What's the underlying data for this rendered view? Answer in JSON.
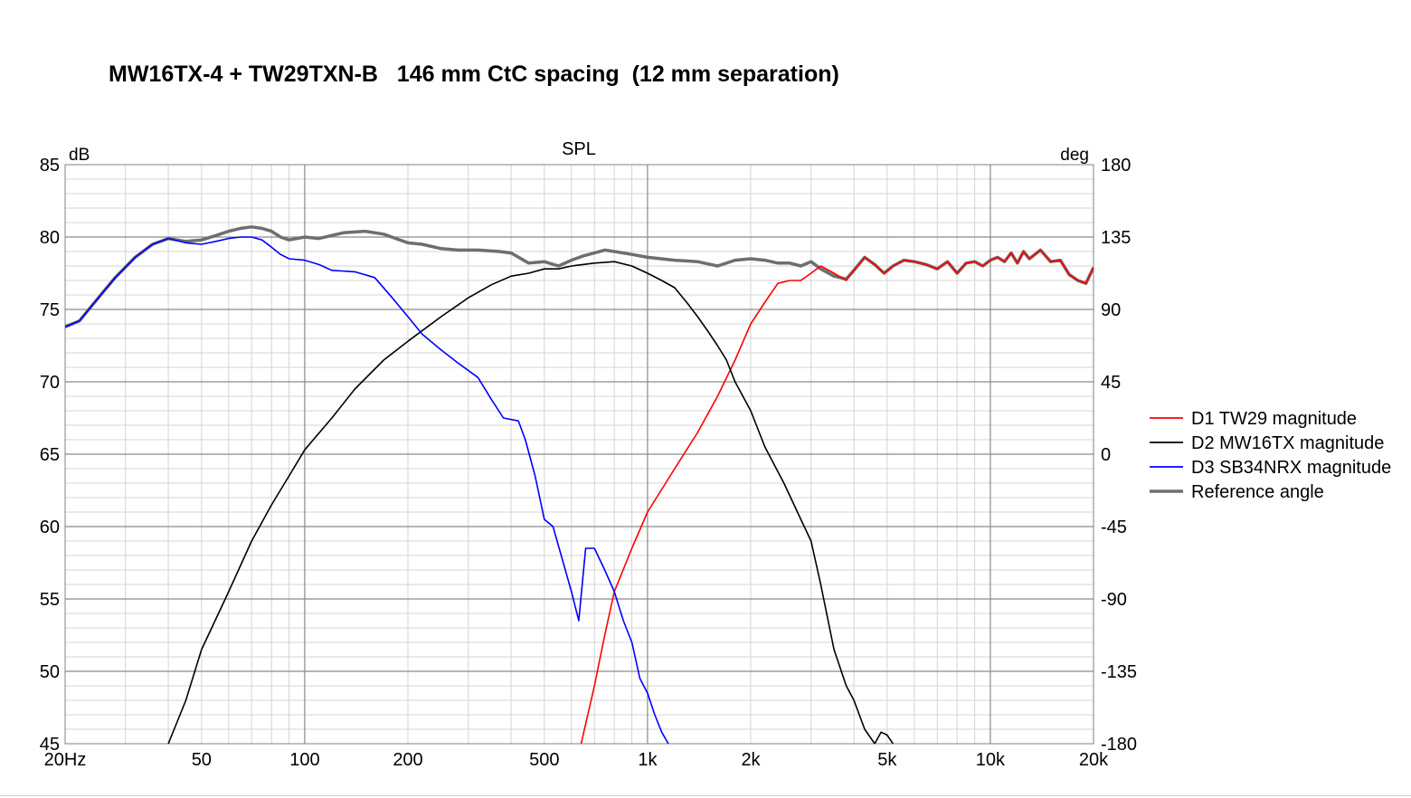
{
  "page": {
    "title": "MW16TX-4 + TW29TXN-B   146 mm CtC spacing  (12 mm separation)"
  },
  "chart_data": {
    "type": "line",
    "title": "SPL",
    "ylabel": "dB",
    "y2label": "deg",
    "xscale": "log",
    "xlim": [
      20,
      20000
    ],
    "ylim": [
      45,
      85
    ],
    "y2lim": [
      -180,
      180
    ],
    "x_ticks": [
      {
        "value": 20,
        "label": "20Hz"
      },
      {
        "value": 50,
        "label": "50"
      },
      {
        "value": 100,
        "label": "100"
      },
      {
        "value": 200,
        "label": "200"
      },
      {
        "value": 500,
        "label": "500"
      },
      {
        "value": 1000,
        "label": "1k"
      },
      {
        "value": 2000,
        "label": "2k"
      },
      {
        "value": 5000,
        "label": "5k"
      },
      {
        "value": 10000,
        "label": "10k"
      },
      {
        "value": 20000,
        "label": "20k"
      }
    ],
    "y_ticks": [
      45,
      50,
      55,
      60,
      65,
      70,
      75,
      80,
      85
    ],
    "y2_ticks": [
      -180,
      -135,
      -90,
      -45,
      0,
      45,
      90,
      135,
      180
    ],
    "grid": true,
    "legend_position": "right",
    "series": [
      {
        "name": "Reference angle",
        "color": "#6e6e6e",
        "points": [
          [
            20,
            73.8
          ],
          [
            22,
            74.2
          ],
          [
            25,
            75.8
          ],
          [
            28,
            77.2
          ],
          [
            32,
            78.6
          ],
          [
            36,
            79.5
          ],
          [
            40,
            79.9
          ],
          [
            45,
            79.7
          ],
          [
            50,
            79.8
          ],
          [
            55,
            80.1
          ],
          [
            60,
            80.4
          ],
          [
            65,
            80.6
          ],
          [
            70,
            80.7
          ],
          [
            75,
            80.6
          ],
          [
            80,
            80.4
          ],
          [
            85,
            80.0
          ],
          [
            90,
            79.8
          ],
          [
            100,
            80.0
          ],
          [
            110,
            79.9
          ],
          [
            130,
            80.3
          ],
          [
            150,
            80.4
          ],
          [
            170,
            80.2
          ],
          [
            200,
            79.6
          ],
          [
            220,
            79.5
          ],
          [
            250,
            79.2
          ],
          [
            280,
            79.1
          ],
          [
            320,
            79.1
          ],
          [
            370,
            79.0
          ],
          [
            400,
            78.9
          ],
          [
            450,
            78.2
          ],
          [
            500,
            78.3
          ],
          [
            550,
            78.0
          ],
          [
            600,
            78.4
          ],
          [
            650,
            78.7
          ],
          [
            700,
            78.9
          ],
          [
            750,
            79.1
          ],
          [
            800,
            79.0
          ],
          [
            900,
            78.8
          ],
          [
            1000,
            78.6
          ],
          [
            1200,
            78.4
          ],
          [
            1400,
            78.3
          ],
          [
            1600,
            78.0
          ],
          [
            1800,
            78.4
          ],
          [
            2000,
            78.5
          ],
          [
            2200,
            78.4
          ],
          [
            2400,
            78.2
          ],
          [
            2600,
            78.2
          ],
          [
            2800,
            78.0
          ],
          [
            3000,
            78.3
          ],
          [
            3200,
            77.8
          ],
          [
            3500,
            77.3
          ],
          [
            3800,
            77.1
          ],
          [
            4000,
            77.7
          ],
          [
            4300,
            78.6
          ],
          [
            4600,
            78.1
          ],
          [
            4900,
            77.5
          ],
          [
            5200,
            78.0
          ],
          [
            5600,
            78.4
          ],
          [
            6000,
            78.3
          ],
          [
            6500,
            78.1
          ],
          [
            7000,
            77.8
          ],
          [
            7500,
            78.3
          ],
          [
            8000,
            77.5
          ],
          [
            8500,
            78.2
          ],
          [
            9000,
            78.3
          ],
          [
            9500,
            78.0
          ],
          [
            10000,
            78.4
          ],
          [
            10500,
            78.6
          ],
          [
            11000,
            78.3
          ],
          [
            11500,
            78.9
          ],
          [
            12000,
            78.2
          ],
          [
            12500,
            79.0
          ],
          [
            13000,
            78.5
          ],
          [
            14000,
            79.1
          ],
          [
            15000,
            78.3
          ],
          [
            16000,
            78.4
          ],
          [
            17000,
            77.4
          ],
          [
            18000,
            77.0
          ],
          [
            19000,
            76.8
          ],
          [
            20000,
            77.9
          ]
        ]
      },
      {
        "name": "D1 TW29 magnitude",
        "color": "#ff0000",
        "points": [
          [
            640,
            45.0
          ],
          [
            700,
            49.0
          ],
          [
            750,
            52.5
          ],
          [
            800,
            55.5
          ],
          [
            900,
            58.5
          ],
          [
            1000,
            61.0
          ],
          [
            1200,
            64.0
          ],
          [
            1400,
            66.5
          ],
          [
            1600,
            69.0
          ],
          [
            1800,
            71.5
          ],
          [
            2000,
            74.0
          ],
          [
            2200,
            75.5
          ],
          [
            2400,
            76.8
          ],
          [
            2600,
            77.0
          ],
          [
            2800,
            77.0
          ],
          [
            3000,
            77.5
          ],
          [
            3200,
            78.0
          ],
          [
            3500,
            77.5
          ],
          [
            3800,
            77.0
          ],
          [
            4000,
            77.7
          ],
          [
            4300,
            78.6
          ],
          [
            4600,
            78.1
          ],
          [
            4900,
            77.5
          ],
          [
            5200,
            78.0
          ],
          [
            5600,
            78.4
          ],
          [
            6000,
            78.3
          ],
          [
            6500,
            78.1
          ],
          [
            7000,
            77.8
          ],
          [
            7500,
            78.3
          ],
          [
            8000,
            77.5
          ],
          [
            8500,
            78.2
          ],
          [
            9000,
            78.3
          ],
          [
            9500,
            78.0
          ],
          [
            10000,
            78.4
          ],
          [
            10500,
            78.6
          ],
          [
            11000,
            78.3
          ],
          [
            11500,
            78.9
          ],
          [
            12000,
            78.2
          ],
          [
            12500,
            79.0
          ],
          [
            13000,
            78.5
          ],
          [
            14000,
            79.1
          ],
          [
            15000,
            78.3
          ],
          [
            16000,
            78.4
          ],
          [
            17000,
            77.4
          ],
          [
            18000,
            77.0
          ],
          [
            19000,
            76.8
          ],
          [
            20000,
            77.9
          ]
        ]
      },
      {
        "name": "D2 MW16TX magnitude",
        "color": "#000000",
        "points": [
          [
            40,
            45.0
          ],
          [
            45,
            48.0
          ],
          [
            50,
            51.5
          ],
          [
            60,
            55.5
          ],
          [
            70,
            59.0
          ],
          [
            80,
            61.5
          ],
          [
            90,
            63.5
          ],
          [
            100,
            65.3
          ],
          [
            120,
            67.5
          ],
          [
            140,
            69.5
          ],
          [
            170,
            71.5
          ],
          [
            200,
            72.8
          ],
          [
            250,
            74.5
          ],
          [
            300,
            75.8
          ],
          [
            350,
            76.7
          ],
          [
            400,
            77.3
          ],
          [
            450,
            77.5
          ],
          [
            500,
            77.8
          ],
          [
            550,
            77.8
          ],
          [
            600,
            78.0
          ],
          [
            700,
            78.2
          ],
          [
            800,
            78.3
          ],
          [
            900,
            78.0
          ],
          [
            1000,
            77.5
          ],
          [
            1100,
            77.0
          ],
          [
            1200,
            76.5
          ],
          [
            1300,
            75.5
          ],
          [
            1400,
            74.5
          ],
          [
            1500,
            73.5
          ],
          [
            1600,
            72.5
          ],
          [
            1700,
            71.5
          ],
          [
            1800,
            70.0
          ],
          [
            2000,
            68.0
          ],
          [
            2200,
            65.5
          ],
          [
            2500,
            63.0
          ],
          [
            2800,
            60.5
          ],
          [
            3000,
            59.0
          ],
          [
            3200,
            56.0
          ],
          [
            3500,
            51.5
          ],
          [
            3800,
            49.0
          ],
          [
            4000,
            48.0
          ],
          [
            4300,
            46.0
          ],
          [
            4600,
            45.0
          ],
          [
            4800,
            45.8
          ],
          [
            5000,
            45.6
          ],
          [
            5200,
            45.0
          ]
        ]
      },
      {
        "name": "D3 SB34NRX magnitude",
        "color": "#0000ff",
        "points": [
          [
            20,
            73.8
          ],
          [
            22,
            74.2
          ],
          [
            25,
            75.8
          ],
          [
            28,
            77.2
          ],
          [
            32,
            78.6
          ],
          [
            36,
            79.5
          ],
          [
            40,
            79.9
          ],
          [
            45,
            79.6
          ],
          [
            50,
            79.5
          ],
          [
            55,
            79.7
          ],
          [
            60,
            79.9
          ],
          [
            65,
            80.0
          ],
          [
            70,
            80.0
          ],
          [
            75,
            79.8
          ],
          [
            80,
            79.3
          ],
          [
            85,
            78.8
          ],
          [
            90,
            78.5
          ],
          [
            100,
            78.4
          ],
          [
            110,
            78.1
          ],
          [
            120,
            77.7
          ],
          [
            140,
            77.6
          ],
          [
            160,
            77.2
          ],
          [
            180,
            75.8
          ],
          [
            200,
            74.5
          ],
          [
            220,
            73.3
          ],
          [
            250,
            72.2
          ],
          [
            280,
            71.3
          ],
          [
            320,
            70.3
          ],
          [
            350,
            68.8
          ],
          [
            380,
            67.5
          ],
          [
            420,
            67.3
          ],
          [
            440,
            66.0
          ],
          [
            470,
            63.5
          ],
          [
            500,
            60.5
          ],
          [
            530,
            60.0
          ],
          [
            560,
            58.0
          ],
          [
            600,
            55.5
          ],
          [
            630,
            53.5
          ],
          [
            660,
            58.5
          ],
          [
            700,
            58.5
          ],
          [
            750,
            57.0
          ],
          [
            800,
            55.5
          ],
          [
            850,
            53.5
          ],
          [
            900,
            52.0
          ],
          [
            950,
            49.5
          ],
          [
            1000,
            48.5
          ],
          [
            1050,
            47.0
          ],
          [
            1100,
            45.8
          ],
          [
            1150,
            45.0
          ]
        ]
      }
    ]
  }
}
